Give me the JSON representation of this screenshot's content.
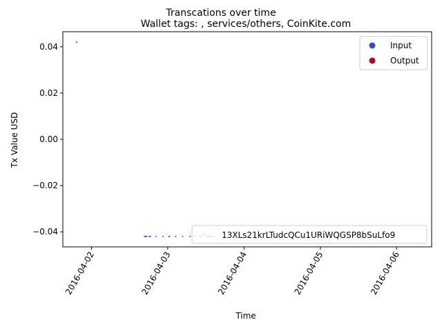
{
  "chart_data": {
    "type": "scatter",
    "title": "Transcations over time",
    "subtitle": "Wallet tags: , services/others, CoinKite.com",
    "xlabel": "Time",
    "ylabel": "Tx Value USD",
    "xlim": [
      "2016-04-01T15:00",
      "2016-04-06T11:00"
    ],
    "ylim": [
      -0.0465,
      0.0465
    ],
    "x_ticks": [
      "2016-04-02",
      "2016-04-03",
      "2016-04-04",
      "2016-04-05",
      "2016-04-06"
    ],
    "y_ticks": [
      {
        "value": 0.04,
        "label": "0.04"
      },
      {
        "value": 0.02,
        "label": "0.02"
      },
      {
        "value": 0.0,
        "label": "0.00"
      },
      {
        "value": -0.02,
        "label": "−0.02"
      },
      {
        "value": -0.04,
        "label": "−0.04"
      }
    ],
    "grid": false,
    "legend": {
      "placement": "top-right",
      "entries": [
        "Input",
        "Output"
      ]
    },
    "annotation": "13XLs21krLTudcQCu1URiWQGSP8bSuLfo9",
    "series": [
      {
        "name": "Input",
        "color": "#3b4cc0",
        "points": [
          {
            "x": "2016-04-02T16:40",
            "y": -0.042
          },
          {
            "x": "2016-04-02T17:00",
            "y": -0.042
          },
          {
            "x": "2016-04-02T17:20",
            "y": -0.042
          },
          {
            "x": "2016-04-02T18:10",
            "y": -0.042
          },
          {
            "x": "2016-04-02T18:30",
            "y": -0.042
          },
          {
            "x": "2016-04-02T20:20",
            "y": -0.042
          },
          {
            "x": "2016-04-02T22:30",
            "y": -0.042
          },
          {
            "x": "2016-04-03T00:20",
            "y": -0.042
          },
          {
            "x": "2016-04-03T00:30",
            "y": -0.042
          },
          {
            "x": "2016-04-03T02:30",
            "y": -0.042
          },
          {
            "x": "2016-04-03T04:40",
            "y": -0.042
          },
          {
            "x": "2016-04-03T07:00",
            "y": -0.042
          },
          {
            "x": "2016-04-03T08:40",
            "y": -0.042
          },
          {
            "x": "2016-04-03T10:10",
            "y": -0.042
          },
          {
            "x": "2016-04-03T10:40",
            "y": -0.042
          },
          {
            "x": "2016-04-03T11:30",
            "y": -0.041
          },
          {
            "x": "2016-04-03T12:30",
            "y": -0.042
          },
          {
            "x": "2016-04-03T13:10",
            "y": -0.042
          },
          {
            "x": "2016-04-03T13:40",
            "y": -0.042
          },
          {
            "x": "2016-04-03T14:20",
            "y": -0.042
          }
        ]
      },
      {
        "name": "Output",
        "color": "#b40426",
        "points": [
          {
            "x": "2016-04-01T19:20",
            "y": 0.042
          }
        ]
      }
    ]
  }
}
